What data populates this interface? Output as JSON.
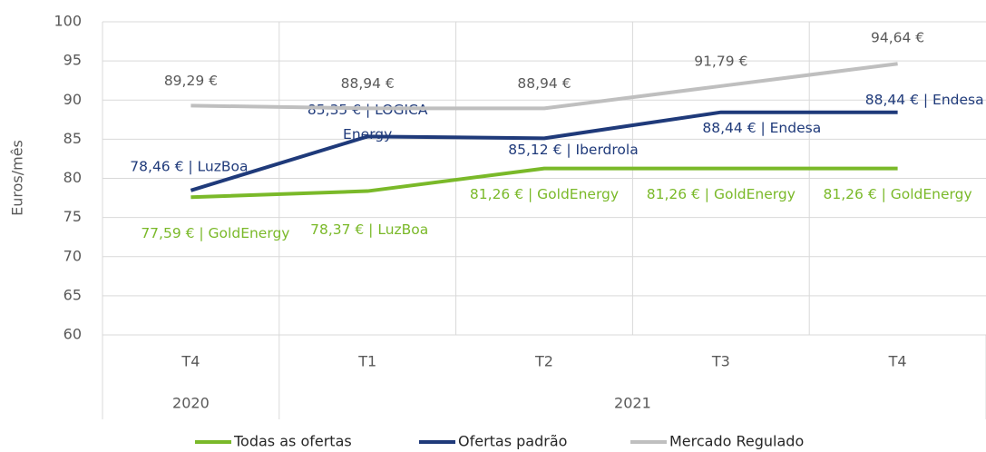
{
  "chart_data": {
    "type": "line",
    "y_label": "Euros/mês",
    "categories": [
      "T4",
      "T1",
      "T2",
      "T3",
      "T4"
    ],
    "category_groups": [
      {
        "name": "2020",
        "count": 1
      },
      {
        "name": "2021",
        "count": 4
      }
    ],
    "ylim": [
      60,
      100
    ],
    "yticks": [
      60,
      65,
      70,
      75,
      80,
      85,
      90,
      95,
      100
    ],
    "grid": true,
    "legend": "bottom",
    "series": [
      {
        "name": "Todas as ofertas",
        "color": "#7ab929",
        "values": [
          77.59,
          78.37,
          81.26,
          81.26,
          81.26
        ],
        "value_labels": [
          "77,59 € | GoldEnergy",
          "78,37 € | LuzBoa",
          "81,26 € | GoldEnergy",
          "81,26 € | GoldEnergy",
          "81,26 € | GoldEnergy"
        ]
      },
      {
        "name": "Ofertas padrão",
        "color": "#1f3a7a",
        "values": [
          78.46,
          85.35,
          85.12,
          88.44,
          88.44
        ],
        "value_labels": [
          "78,46 € | LuzBoa",
          "85,35 € | LOGICA Energy",
          "85,12 € | Iberdrola",
          "88,44 € | Endesa",
          "88,44 € | Endesa"
        ]
      },
      {
        "name": "Mercado Regulado",
        "color": "#bfbfbf",
        "values": [
          89.29,
          88.94,
          88.94,
          91.79,
          94.64
        ],
        "value_labels": [
          "89,29 €",
          "88,94 €",
          "88,94 €",
          "91,79 €",
          "94,64 €"
        ]
      }
    ]
  }
}
